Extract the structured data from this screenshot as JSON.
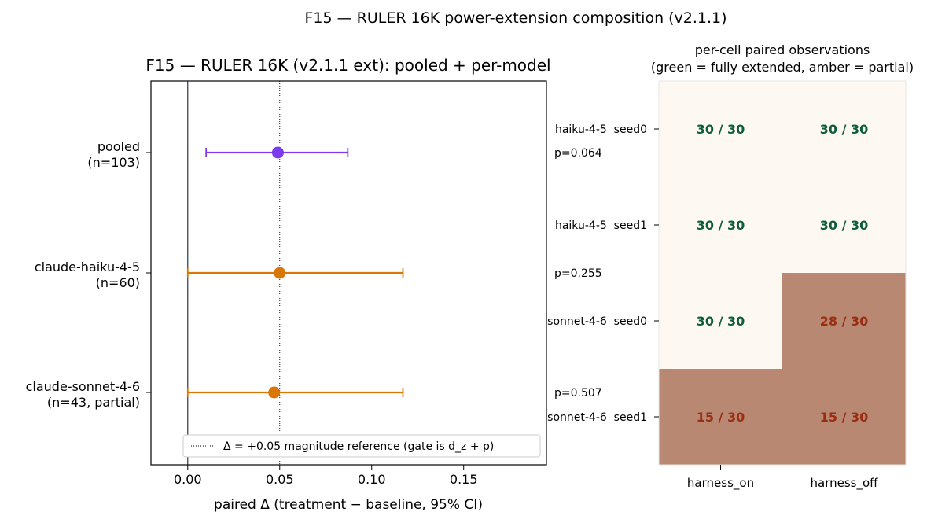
{
  "figure": {
    "suptitle": "F15 — RULER 16K power-extension composition (v2.1.1)"
  },
  "chart_data": [
    {
      "type": "scatter",
      "subtype": "forest-plot",
      "title": "F15 — RULER 16K (v2.1.1 ext): pooled + per-model",
      "xlabel": "paired Δ (treatment − baseline, 95% CI)",
      "xlim": [
        -0.02,
        0.195
      ],
      "xticks": [
        "0.00",
        "0.05",
        "0.10",
        "0.15"
      ],
      "xtick_values": [
        0.0,
        0.05,
        0.1,
        0.15
      ],
      "zero_line": 0.0,
      "reference_line": 0.05,
      "legend": {
        "label": "Δ = +0.05 magnitude reference (gate is d_z + p)",
        "placement": "lower-right"
      },
      "rows": [
        {
          "label_line1": "pooled",
          "label_line2": "(n=103)",
          "estimate": 0.049,
          "ci_low": 0.01,
          "ci_high": 0.087,
          "color": "#7c3aed",
          "p_label": "p=0.064"
        },
        {
          "label_line1": "claude-haiku-4-5",
          "label_line2": "(n=60)",
          "estimate": 0.05,
          "ci_low": 0.0,
          "ci_high": 0.117,
          "color": "#d97706",
          "p_label": "p=0.255"
        },
        {
          "label_line1": "claude-sonnet-4-6",
          "label_line2": "(n=43, partial)",
          "estimate": 0.047,
          "ci_low": 0.0,
          "ci_high": 0.117,
          "color": "#d97706",
          "p_label": "p=0.507"
        }
      ]
    },
    {
      "type": "heatmap",
      "title_line1": "per-cell paired observations",
      "title_line2": "(green = fully extended, amber = partial)",
      "columns": [
        "harness_on",
        "harness_off"
      ],
      "rows": [
        "haiku-4-5  seed0",
        "haiku-4-5  seed1",
        "sonnet-4-6  seed0",
        "sonnet-4-6  seed1"
      ],
      "cells": [
        [
          {
            "text": "30 / 30",
            "done": 30,
            "total": 30,
            "status": "full"
          },
          {
            "text": "30 / 30",
            "done": 30,
            "total": 30,
            "status": "full"
          }
        ],
        [
          {
            "text": "30 / 30",
            "done": 30,
            "total": 30,
            "status": "full"
          },
          {
            "text": "30 / 30",
            "done": 30,
            "total": 30,
            "status": "full"
          }
        ],
        [
          {
            "text": "30 / 30",
            "done": 30,
            "total": 30,
            "status": "full"
          },
          {
            "text": "28 / 30",
            "done": 28,
            "total": 30,
            "status": "partial"
          }
        ],
        [
          {
            "text": "15 / 30",
            "done": 15,
            "total": 30,
            "status": "partial"
          },
          {
            "text": "15 / 30",
            "done": 15,
            "total": 30,
            "status": "partial"
          }
        ]
      ],
      "colors": {
        "full_fill": "#fdf8f2",
        "partial_fill": "#b88873",
        "full_text": "#0f5e3a",
        "partial_text": "#9a2e12"
      }
    }
  ]
}
